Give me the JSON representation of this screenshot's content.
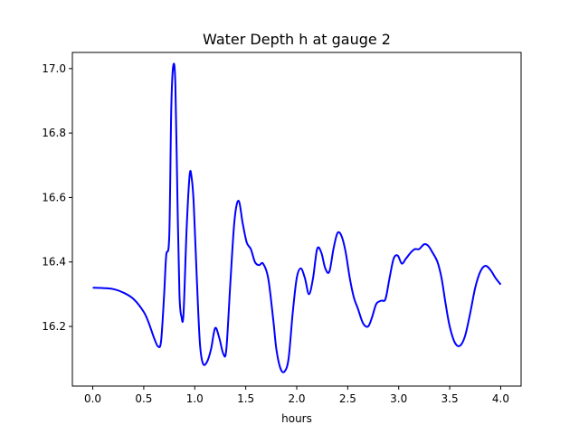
{
  "chart_data": {
    "type": "line",
    "title": "Water Depth h at gauge 2",
    "xlabel": "hours",
    "ylabel": "",
    "xlim": [
      -0.2,
      4.2
    ],
    "ylim": [
      16.015,
      17.05
    ],
    "x_ticks": [
      0.0,
      0.5,
      1.0,
      1.5,
      2.0,
      2.5,
      3.0,
      3.5,
      4.0
    ],
    "x_tick_labels": [
      "0.0",
      "0.5",
      "1.0",
      "1.5",
      "2.0",
      "2.5",
      "3.0",
      "3.5",
      "4.0"
    ],
    "y_ticks": [
      16.2,
      16.4,
      16.6,
      16.8,
      17.0
    ],
    "y_tick_labels": [
      "16.2",
      "16.4",
      "16.6",
      "16.8",
      "17.0"
    ],
    "grid": false,
    "legend": "none",
    "series": [
      {
        "color": "#0000ff",
        "x": [
          0.0,
          0.1,
          0.2,
          0.3,
          0.4,
          0.5,
          0.55,
          0.6,
          0.64,
          0.67,
          0.7,
          0.72,
          0.75,
          0.77,
          0.79,
          0.81,
          0.83,
          0.85,
          0.87,
          0.89,
          0.92,
          0.95,
          0.97,
          0.99,
          1.02,
          1.05,
          1.08,
          1.12,
          1.16,
          1.2,
          1.24,
          1.28,
          1.31,
          1.35,
          1.39,
          1.43,
          1.47,
          1.51,
          1.55,
          1.59,
          1.63,
          1.67,
          1.72,
          1.77,
          1.8,
          1.84,
          1.88,
          1.92,
          1.96,
          2.0,
          2.04,
          2.08,
          2.12,
          2.16,
          2.2,
          2.24,
          2.28,
          2.32,
          2.36,
          2.4,
          2.44,
          2.48,
          2.52,
          2.56,
          2.6,
          2.65,
          2.7,
          2.74,
          2.78,
          2.83,
          2.87,
          2.91,
          2.95,
          2.99,
          3.03,
          3.07,
          3.12,
          3.16,
          3.2,
          3.25,
          3.29,
          3.33,
          3.38,
          3.42,
          3.46,
          3.5,
          3.55,
          3.6,
          3.65,
          3.7,
          3.75,
          3.8,
          3.85,
          3.9,
          3.95,
          4.0
        ],
        "y": [
          16.32,
          16.319,
          16.316,
          16.305,
          16.285,
          16.245,
          16.21,
          16.165,
          16.138,
          16.155,
          16.3,
          16.42,
          16.48,
          16.88,
          17.01,
          16.95,
          16.6,
          16.3,
          16.23,
          16.24,
          16.5,
          16.67,
          16.66,
          16.58,
          16.35,
          16.15,
          16.085,
          16.09,
          16.13,
          16.195,
          16.165,
          16.115,
          16.13,
          16.34,
          16.53,
          16.59,
          16.52,
          16.46,
          16.44,
          16.4,
          16.39,
          16.395,
          16.35,
          16.22,
          16.13,
          16.07,
          16.06,
          16.1,
          16.24,
          16.35,
          16.38,
          16.35,
          16.3,
          16.35,
          16.44,
          16.43,
          16.38,
          16.37,
          16.44,
          16.49,
          16.48,
          16.43,
          16.35,
          16.29,
          16.255,
          16.21,
          16.2,
          16.23,
          16.27,
          16.28,
          16.285,
          16.35,
          16.41,
          16.42,
          16.395,
          16.41,
          16.43,
          16.44,
          16.44,
          16.455,
          16.45,
          16.43,
          16.4,
          16.35,
          16.27,
          16.2,
          16.15,
          16.14,
          16.17,
          16.24,
          16.32,
          16.37,
          16.388,
          16.375,
          16.35,
          16.33
        ]
      }
    ]
  }
}
